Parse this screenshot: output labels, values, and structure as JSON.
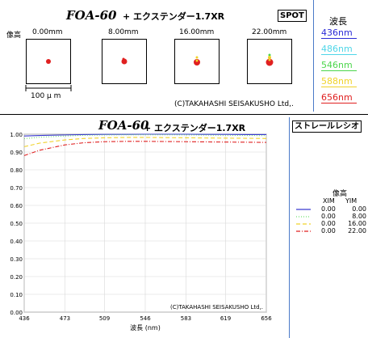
{
  "spot": {
    "title_main": "FOA-60",
    "title_sub": "+ エクステンダー1.7XR",
    "badge": "SPOT",
    "field_label": "像高",
    "fields": [
      "0.00mm",
      "8.00mm",
      "16.00mm",
      "22.00mm"
    ],
    "scale_label": "100 μ m",
    "copyright": "(C)TAKAHASHI SEISAKUSHO Ltd,."
  },
  "wavelength_legend": {
    "title": "波長",
    "items": [
      {
        "label": "436nm",
        "color": "#2b2bd6"
      },
      {
        "label": "486nm",
        "color": "#4fd6e8"
      },
      {
        "label": "546nm",
        "color": "#4cd64c"
      },
      {
        "label": "588nm",
        "color": "#f0d22a"
      },
      {
        "label": "656nm",
        "color": "#e02020"
      }
    ]
  },
  "strehl": {
    "title_main": "FOA-60",
    "title_sub": "+ エクステンダー1.7XR",
    "badge": "ストレールレシオ",
    "copyright": "(C)TAKAHASHI SEISAKUSHO Ltd,.",
    "legend": {
      "title": "像高",
      "col_x": "XIM",
      "col_y": "YIM",
      "rows": [
        {
          "xim": "0.00",
          "yim": "0.00",
          "color": "#3a3ad0",
          "dash": ""
        },
        {
          "xim": "0.00",
          "yim": "8.00",
          "color": "#6fe06f",
          "dash": "1,2"
        },
        {
          "xim": "0.00",
          "yim": "16.00",
          "color": "#f0d22a",
          "dash": "5,3"
        },
        {
          "xim": "0.00",
          "yim": "22.00",
          "color": "#e02020",
          "dash": "5,2,1,2"
        }
      ]
    }
  },
  "chart_data": {
    "type": "line",
    "xlabel": "波長 (nm)",
    "ylabel": "",
    "xlim": [
      436,
      656
    ],
    "ylim": [
      0,
      1
    ],
    "x_ticks": [
      436,
      473,
      509,
      546,
      583,
      619,
      656
    ],
    "y_ticks": [
      "0.00",
      "0.10",
      "0.20",
      "0.30",
      "0.40",
      "0.50",
      "0.60",
      "0.70",
      "0.80",
      "0.90",
      "1.00"
    ],
    "grid": true,
    "x": [
      436,
      450,
      473,
      490,
      509,
      530,
      546,
      565,
      583,
      600,
      619,
      640,
      656
    ],
    "series": [
      {
        "name": "0.00 0.00",
        "color": "#3a3ad0",
        "values": [
          0.99,
          0.993,
          0.996,
          0.998,
          0.999,
          0.999,
          1.0,
          1.0,
          1.0,
          0.999,
          0.999,
          0.998,
          0.998
        ]
      },
      {
        "name": "0.00 8.00",
        "color": "#6fe06f",
        "values": [
          0.975,
          0.983,
          0.99,
          0.994,
          0.996,
          0.997,
          0.997,
          0.997,
          0.996,
          0.995,
          0.994,
          0.993,
          0.992
        ]
      },
      {
        "name": "0.00 16.00",
        "color": "#f0d22a",
        "values": [
          0.93,
          0.95,
          0.968,
          0.976,
          0.98,
          0.982,
          0.982,
          0.981,
          0.98,
          0.979,
          0.978,
          0.977,
          0.976
        ]
      },
      {
        "name": "0.00 22.00",
        "color": "#e02020",
        "values": [
          0.88,
          0.91,
          0.94,
          0.952,
          0.958,
          0.96,
          0.96,
          0.959,
          0.958,
          0.957,
          0.956,
          0.955,
          0.954
        ]
      }
    ]
  }
}
